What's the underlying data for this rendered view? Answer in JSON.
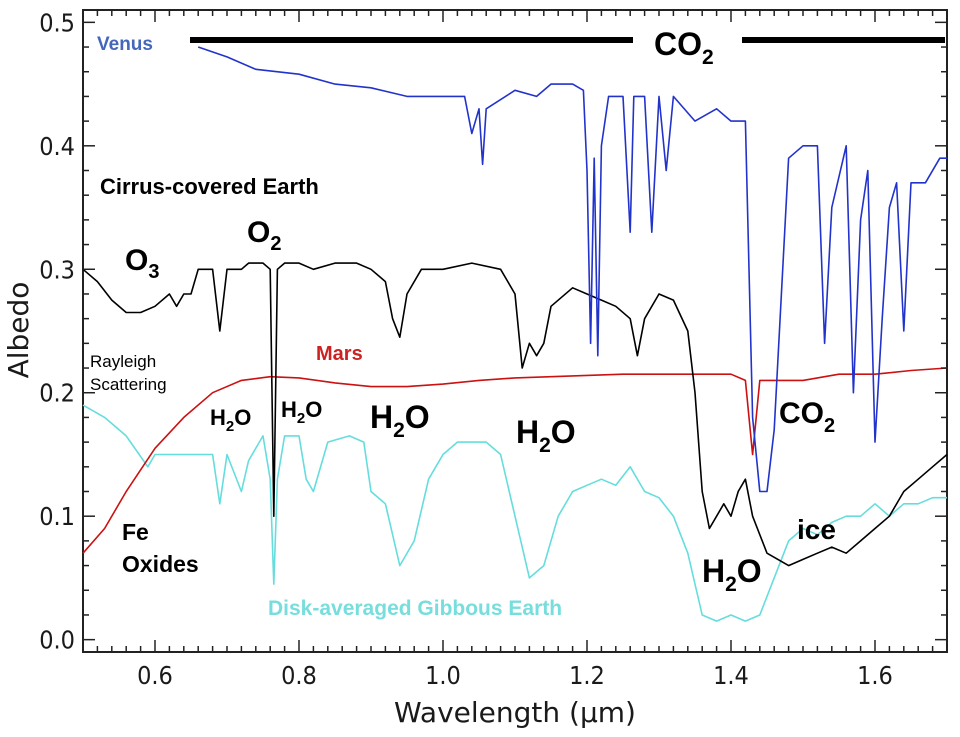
{
  "chart_data": {
    "type": "line",
    "title": "",
    "xlabel": "Wavelength (μm)",
    "ylabel": "Albedo",
    "xlim": [
      0.5,
      1.7
    ],
    "ylim": [
      -0.01,
      0.51
    ],
    "x_ticks": [
      "0.6",
      "0.8",
      "1.0",
      "1.2",
      "1.4",
      "1.6"
    ],
    "x_tick_values": [
      0.6,
      0.8,
      1.0,
      1.2,
      1.4,
      1.6
    ],
    "y_ticks": [
      "0.0",
      "0.1",
      "0.2",
      "0.3",
      "0.4",
      "0.5"
    ],
    "y_tick_values": [
      0.0,
      0.1,
      0.2,
      0.3,
      0.4,
      0.5
    ],
    "grid": false,
    "series": [
      {
        "name": "Venus",
        "color": "#2233cc",
        "points": [
          [
            0.66,
            0.48
          ],
          [
            0.7,
            0.472
          ],
          [
            0.74,
            0.462
          ],
          [
            0.8,
            0.458
          ],
          [
            0.85,
            0.45
          ],
          [
            0.9,
            0.447
          ],
          [
            0.95,
            0.44
          ],
          [
            1.0,
            0.44
          ],
          [
            1.03,
            0.44
          ],
          [
            1.04,
            0.41
          ],
          [
            1.05,
            0.43
          ],
          [
            1.055,
            0.385
          ],
          [
            1.06,
            0.43
          ],
          [
            1.1,
            0.445
          ],
          [
            1.13,
            0.44
          ],
          [
            1.15,
            0.45
          ],
          [
            1.18,
            0.45
          ],
          [
            1.195,
            0.445
          ],
          [
            1.2,
            0.38
          ],
          [
            1.205,
            0.24
          ],
          [
            1.21,
            0.39
          ],
          [
            1.215,
            0.23
          ],
          [
            1.22,
            0.4
          ],
          [
            1.23,
            0.44
          ],
          [
            1.25,
            0.44
          ],
          [
            1.26,
            0.33
          ],
          [
            1.265,
            0.44
          ],
          [
            1.28,
            0.44
          ],
          [
            1.29,
            0.33
          ],
          [
            1.3,
            0.44
          ],
          [
            1.31,
            0.38
          ],
          [
            1.32,
            0.44
          ],
          [
            1.35,
            0.42
          ],
          [
            1.38,
            0.43
          ],
          [
            1.4,
            0.42
          ],
          [
            1.42,
            0.42
          ],
          [
            1.425,
            0.3
          ],
          [
            1.43,
            0.18
          ],
          [
            1.44,
            0.12
          ],
          [
            1.45,
            0.12
          ],
          [
            1.46,
            0.17
          ],
          [
            1.48,
            0.39
          ],
          [
            1.5,
            0.4
          ],
          [
            1.52,
            0.4
          ],
          [
            1.53,
            0.24
          ],
          [
            1.54,
            0.35
          ],
          [
            1.56,
            0.4
          ],
          [
            1.57,
            0.2
          ],
          [
            1.58,
            0.34
          ],
          [
            1.59,
            0.38
          ],
          [
            1.6,
            0.16
          ],
          [
            1.61,
            0.26
          ],
          [
            1.62,
            0.35
          ],
          [
            1.63,
            0.37
          ],
          [
            1.64,
            0.25
          ],
          [
            1.65,
            0.37
          ],
          [
            1.67,
            0.37
          ],
          [
            1.69,
            0.39
          ],
          [
            1.7,
            0.39
          ]
        ]
      },
      {
        "name": "Cirrus-covered Earth",
        "color": "#000000",
        "points": [
          [
            0.5,
            0.3
          ],
          [
            0.52,
            0.29
          ],
          [
            0.54,
            0.275
          ],
          [
            0.56,
            0.265
          ],
          [
            0.58,
            0.265
          ],
          [
            0.6,
            0.27
          ],
          [
            0.62,
            0.28
          ],
          [
            0.63,
            0.27
          ],
          [
            0.64,
            0.28
          ],
          [
            0.65,
            0.28
          ],
          [
            0.66,
            0.3
          ],
          [
            0.68,
            0.3
          ],
          [
            0.69,
            0.25
          ],
          [
            0.7,
            0.3
          ],
          [
            0.72,
            0.3
          ],
          [
            0.73,
            0.305
          ],
          [
            0.75,
            0.305
          ],
          [
            0.76,
            0.3
          ],
          [
            0.765,
            0.1
          ],
          [
            0.77,
            0.3
          ],
          [
            0.78,
            0.305
          ],
          [
            0.8,
            0.305
          ],
          [
            0.82,
            0.3
          ],
          [
            0.85,
            0.305
          ],
          [
            0.88,
            0.305
          ],
          [
            0.9,
            0.3
          ],
          [
            0.92,
            0.29
          ],
          [
            0.93,
            0.26
          ],
          [
            0.94,
            0.245
          ],
          [
            0.95,
            0.28
          ],
          [
            0.97,
            0.3
          ],
          [
            1.0,
            0.3
          ],
          [
            1.04,
            0.305
          ],
          [
            1.08,
            0.3
          ],
          [
            1.1,
            0.28
          ],
          [
            1.11,
            0.22
          ],
          [
            1.12,
            0.24
          ],
          [
            1.13,
            0.23
          ],
          [
            1.14,
            0.24
          ],
          [
            1.15,
            0.27
          ],
          [
            1.18,
            0.285
          ],
          [
            1.2,
            0.28
          ],
          [
            1.22,
            0.275
          ],
          [
            1.24,
            0.27
          ],
          [
            1.26,
            0.26
          ],
          [
            1.27,
            0.23
          ],
          [
            1.28,
            0.26
          ],
          [
            1.3,
            0.28
          ],
          [
            1.32,
            0.275
          ],
          [
            1.34,
            0.25
          ],
          [
            1.35,
            0.2
          ],
          [
            1.36,
            0.12
          ],
          [
            1.37,
            0.09
          ],
          [
            1.38,
            0.1
          ],
          [
            1.39,
            0.11
          ],
          [
            1.4,
            0.1
          ],
          [
            1.41,
            0.12
          ],
          [
            1.42,
            0.13
          ],
          [
            1.43,
            0.1
          ],
          [
            1.45,
            0.07
          ],
          [
            1.48,
            0.06
          ],
          [
            1.5,
            0.065
          ],
          [
            1.52,
            0.07
          ],
          [
            1.54,
            0.075
          ],
          [
            1.56,
            0.07
          ],
          [
            1.58,
            0.08
          ],
          [
            1.6,
            0.09
          ],
          [
            1.62,
            0.1
          ],
          [
            1.64,
            0.12
          ],
          [
            1.66,
            0.13
          ],
          [
            1.68,
            0.14
          ],
          [
            1.7,
            0.15
          ]
        ]
      },
      {
        "name": "Mars",
        "color": "#cc1111",
        "points": [
          [
            0.5,
            0.07
          ],
          [
            0.53,
            0.09
          ],
          [
            0.56,
            0.12
          ],
          [
            0.6,
            0.155
          ],
          [
            0.64,
            0.18
          ],
          [
            0.68,
            0.2
          ],
          [
            0.72,
            0.21
          ],
          [
            0.76,
            0.213
          ],
          [
            0.8,
            0.212
          ],
          [
            0.85,
            0.208
          ],
          [
            0.9,
            0.205
          ],
          [
            0.95,
            0.205
          ],
          [
            1.0,
            0.207
          ],
          [
            1.05,
            0.21
          ],
          [
            1.1,
            0.212
          ],
          [
            1.15,
            0.213
          ],
          [
            1.2,
            0.214
          ],
          [
            1.25,
            0.215
          ],
          [
            1.3,
            0.215
          ],
          [
            1.35,
            0.215
          ],
          [
            1.4,
            0.215
          ],
          [
            1.42,
            0.21
          ],
          [
            1.43,
            0.15
          ],
          [
            1.44,
            0.21
          ],
          [
            1.5,
            0.21
          ],
          [
            1.55,
            0.215
          ],
          [
            1.6,
            0.215
          ],
          [
            1.65,
            0.218
          ],
          [
            1.7,
            0.22
          ]
        ]
      },
      {
        "name": "Disk-averaged Gibbous Earth",
        "color": "#66dddd",
        "points": [
          [
            0.5,
            0.19
          ],
          [
            0.53,
            0.18
          ],
          [
            0.56,
            0.165
          ],
          [
            0.59,
            0.14
          ],
          [
            0.6,
            0.15
          ],
          [
            0.62,
            0.15
          ],
          [
            0.65,
            0.15
          ],
          [
            0.68,
            0.15
          ],
          [
            0.69,
            0.11
          ],
          [
            0.7,
            0.15
          ],
          [
            0.72,
            0.12
          ],
          [
            0.73,
            0.145
          ],
          [
            0.75,
            0.165
          ],
          [
            0.76,
            0.13
          ],
          [
            0.765,
            0.045
          ],
          [
            0.77,
            0.13
          ],
          [
            0.78,
            0.165
          ],
          [
            0.8,
            0.165
          ],
          [
            0.81,
            0.13
          ],
          [
            0.82,
            0.12
          ],
          [
            0.84,
            0.16
          ],
          [
            0.87,
            0.165
          ],
          [
            0.89,
            0.16
          ],
          [
            0.9,
            0.12
          ],
          [
            0.92,
            0.11
          ],
          [
            0.94,
            0.06
          ],
          [
            0.96,
            0.08
          ],
          [
            0.98,
            0.13
          ],
          [
            1.0,
            0.15
          ],
          [
            1.02,
            0.16
          ],
          [
            1.06,
            0.16
          ],
          [
            1.08,
            0.15
          ],
          [
            1.1,
            0.1
          ],
          [
            1.12,
            0.05
          ],
          [
            1.14,
            0.06
          ],
          [
            1.16,
            0.1
          ],
          [
            1.18,
            0.12
          ],
          [
            1.2,
            0.125
          ],
          [
            1.22,
            0.13
          ],
          [
            1.24,
            0.125
          ],
          [
            1.26,
            0.14
          ],
          [
            1.28,
            0.12
          ],
          [
            1.3,
            0.115
          ],
          [
            1.32,
            0.1
          ],
          [
            1.34,
            0.07
          ],
          [
            1.36,
            0.02
          ],
          [
            1.38,
            0.015
          ],
          [
            1.4,
            0.02
          ],
          [
            1.42,
            0.015
          ],
          [
            1.44,
            0.02
          ],
          [
            1.46,
            0.05
          ],
          [
            1.48,
            0.08
          ],
          [
            1.5,
            0.09
          ],
          [
            1.52,
            0.085
          ],
          [
            1.54,
            0.095
          ],
          [
            1.56,
            0.1
          ],
          [
            1.58,
            0.1
          ],
          [
            1.6,
            0.11
          ],
          [
            1.62,
            0.1
          ],
          [
            1.64,
            0.11
          ],
          [
            1.66,
            0.11
          ],
          [
            1.68,
            0.115
          ],
          [
            1.7,
            0.115
          ]
        ]
      }
    ],
    "annotations": {
      "venus_label": "Venus",
      "co2_top": {
        "main": "CO",
        "sub": "2"
      },
      "cirrus_label": "Cirrus-covered Earth",
      "o3": {
        "main": "O",
        "sub": "3"
      },
      "o2": {
        "main": "O",
        "sub": "2"
      },
      "mars_label": "Mars",
      "rayleigh_line1": "Rayleigh",
      "rayleigh_line2": "Scattering",
      "h2o_small_1": {
        "main": "H",
        "sub": "2",
        "tail": "O"
      },
      "h2o_small_2": {
        "main": "H",
        "sub": "2",
        "tail": "O"
      },
      "h2o_large_1": {
        "main": "H",
        "sub": "2",
        "tail": "O"
      },
      "h2o_large_2": {
        "main": "H",
        "sub": "2",
        "tail": "O"
      },
      "h2o_large_3": {
        "main": "H",
        "sub": "2",
        "tail": "O"
      },
      "co2_right": {
        "main": "CO",
        "sub": "2"
      },
      "fe_line1": "Fe",
      "fe_line2": "Oxides",
      "ice": "ice",
      "gibbous_label": "Disk-averaged Gibbous Earth"
    }
  }
}
